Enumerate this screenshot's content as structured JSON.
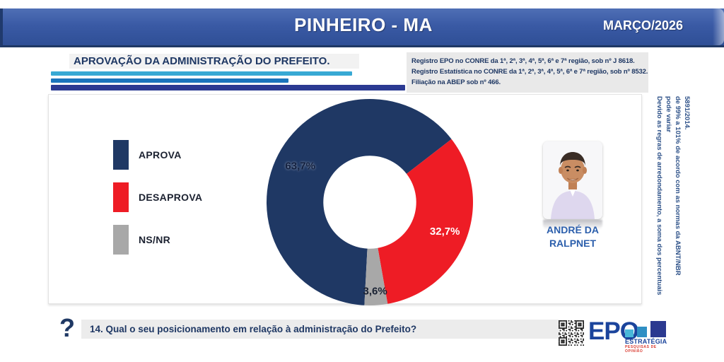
{
  "header": {
    "title": "PINHEIRO - MA",
    "date": "MARÇO/2026"
  },
  "section": {
    "title": "APROVAÇÃO DA ADMINISTRAÇÃO DO PREFEITO."
  },
  "registry": {
    "lines": [
      "Registro EPO no CONRE da 1ª, 2ª, 3ª, 4ª, 5ª, 6ª e 7ª região, sob nº J 8618.",
      "Registro Estatística no CONRE da 1ª, 2ª, 3ª, 4ª, 5ª, 6ª e 7ª região, sob nº 8532.",
      "Filiação na ABEP sob nº 466."
    ]
  },
  "chart_data": {
    "type": "pie",
    "donut": true,
    "title": "APROVAÇÃO DA ADMINISTRAÇÃO DO PREFEITO.",
    "categories": [
      "APROVA",
      "DESAPROVA",
      "NS/NR"
    ],
    "values": [
      63.7,
      32.7,
      3.6
    ],
    "labels": [
      "63,7%",
      "32,7%",
      "3,6%"
    ],
    "colors": [
      "#1f3864",
      "#ee1c25",
      "#a8a8a8"
    ],
    "label_colors": [
      "#142140",
      "#ffffff",
      "#1a2233"
    ],
    "label_radius": [
      0.76,
      0.78,
      0.86
    ],
    "start_angle_deg": 183,
    "direction": "clockwise",
    "inner_radius_ratio": 0.45,
    "legend_position": "left"
  },
  "candidate": {
    "name_line1": "ANDRÉ DA",
    "name_line2": "RALPNET"
  },
  "side_note": {
    "lines": [
      "Devido as regras de arredondamento, a soma dos percentuais pode variar",
      "de 99% a 101% de acordo com as normas da ABNT/NBR 5891/2014."
    ]
  },
  "question": {
    "icon": "?",
    "text": "14. Qual o seu posicionamento em relação à administração do Prefeito?"
  },
  "logo": {
    "name": "EPO",
    "sub": "ESTRATÉGIA",
    "tagline": "PESQUISAS DE OPINIÃO"
  },
  "colors": {
    "header_blue": "#3a5aa5",
    "navy": "#1f3864",
    "rule_cyan": "#38a9d4",
    "rule_blue": "#1b75bc",
    "rule_navy": "#2b3a92",
    "approve": "#1f3864",
    "disapprove": "#ee1c25",
    "nsnr": "#a8a8a8",
    "logo_blue": "#1b449c",
    "tagline_red": "#d9372c"
  }
}
